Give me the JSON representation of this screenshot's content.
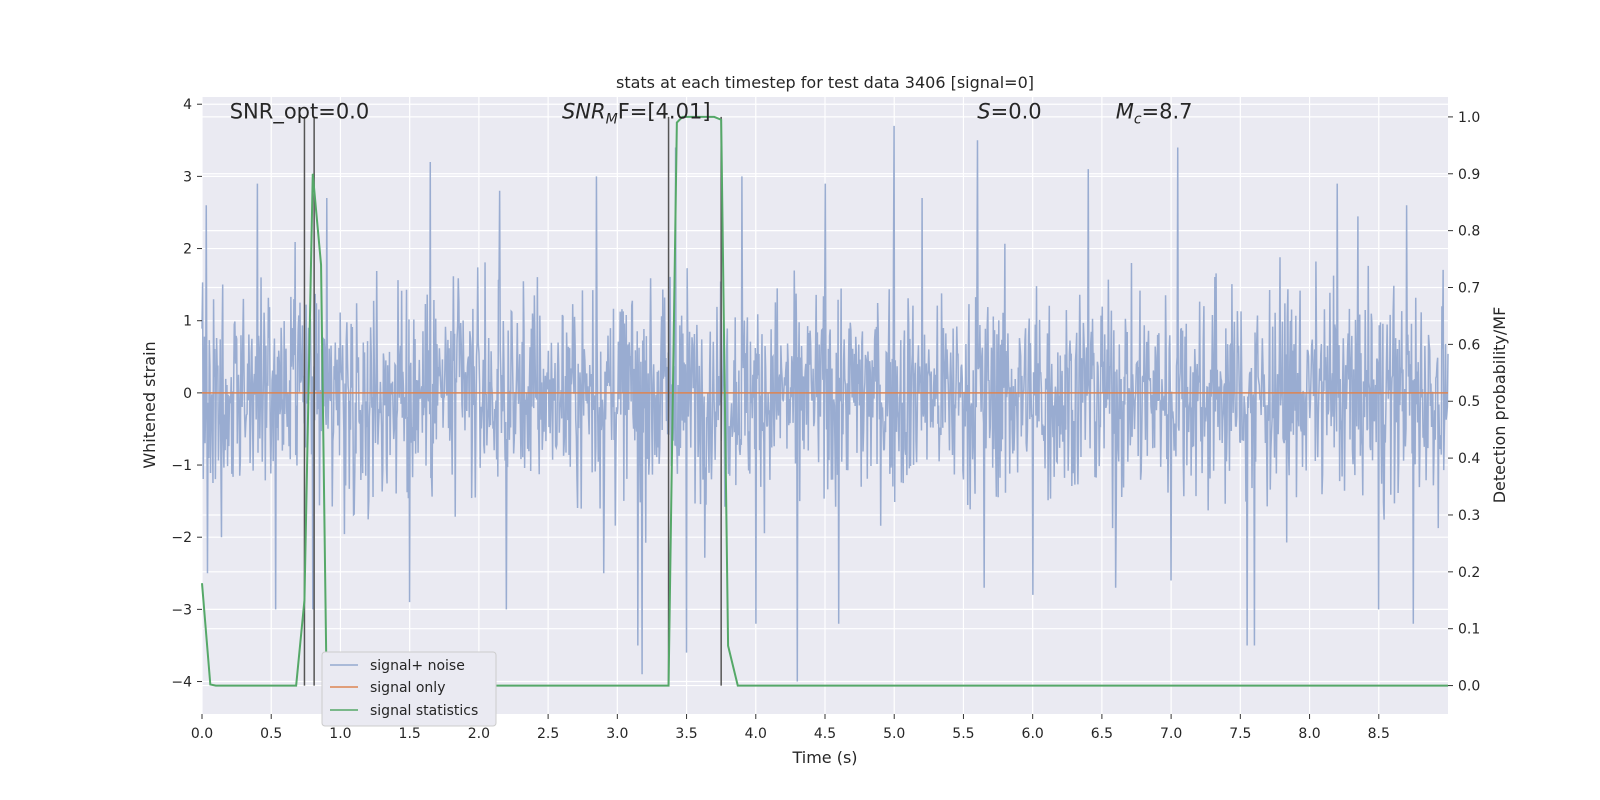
{
  "chart_data": {
    "type": "line",
    "title": "stats at each timestep for test data 3406 [signal=0]",
    "xlabel": "Time (s)",
    "ylabel": "Whitened strain",
    "ylabel_right": "Detection probability/MF",
    "xlim": [
      0,
      9.0
    ],
    "ylim": [
      -4.45,
      4.1
    ],
    "ylim_right": [
      -0.05,
      1.035
    ],
    "x_ticks": [
      0.0,
      0.5,
      1.0,
      1.5,
      2.0,
      2.5,
      3.0,
      3.5,
      4.0,
      4.5,
      5.0,
      5.5,
      6.0,
      6.5,
      7.0,
      7.5,
      8.0,
      8.5
    ],
    "x_tick_labels": [
      "0.0",
      "0.5",
      "1.0",
      "1.5",
      "2.0",
      "2.5",
      "3.0",
      "3.5",
      "4.0",
      "4.5",
      "5.0",
      "5.5",
      "6.0",
      "6.5",
      "7.0",
      "7.5",
      "8.0",
      "8.5"
    ],
    "y_ticks": [
      4,
      3,
      2,
      1,
      0,
      -1,
      -2,
      -3,
      -4
    ],
    "y_tick_labels": [
      "4",
      "3",
      "2",
      "1",
      "0",
      "−1",
      "−2",
      "−3",
      "−4"
    ],
    "y_ticks_right": [
      1.0,
      0.9,
      0.8,
      0.7,
      0.6,
      0.5,
      0.4,
      0.3,
      0.2,
      0.1,
      0.0
    ],
    "y_tick_labels_right": [
      "1.0",
      "0.9",
      "0.8",
      "0.7",
      "0.6",
      "0.5",
      "0.4",
      "0.3",
      "0.2",
      "0.1",
      "0.0"
    ],
    "grid": true,
    "legend_placement": "lower-left",
    "annotations": [
      {
        "x": 0.2,
        "y": 3.8,
        "text": "SNR_opt=0.0"
      },
      {
        "x": 2.6,
        "y": 3.8,
        "main": "SNR",
        "sub": "M",
        "tail": "F=[4.01]"
      },
      {
        "x": 5.6,
        "y": 3.8,
        "main": "S",
        "sub": "",
        "tail": "=0.0"
      },
      {
        "x": 6.6,
        "y": 3.8,
        "main": "M",
        "sub": "c",
        "tail": "=8.7"
      }
    ],
    "vertical_lines": [
      0.74,
      0.81,
      3.37,
      3.75
    ],
    "series": [
      {
        "name": "signal+ noise",
        "color": "#95a9cf",
        "amplitude": 1.3,
        "samples": 2048,
        "peaks": [
          {
            "x": 0.03,
            "y": 2.6
          },
          {
            "x": 0.04,
            "y": -2.5
          },
          {
            "x": 0.4,
            "y": 2.9
          },
          {
            "x": 0.53,
            "y": -3.0
          },
          {
            "x": 0.8,
            "y": -3.0
          },
          {
            "x": 0.9,
            "y": 2.7
          },
          {
            "x": 1.5,
            "y": -2.9
          },
          {
            "x": 1.65,
            "y": 3.2
          },
          {
            "x": 2.15,
            "y": 2.8
          },
          {
            "x": 2.2,
            "y": -3.0
          },
          {
            "x": 2.85,
            "y": 3.0
          },
          {
            "x": 2.9,
            "y": -2.5
          },
          {
            "x": 3.15,
            "y": -3.5
          },
          {
            "x": 3.18,
            "y": -3.9
          },
          {
            "x": 3.42,
            "y": 3.4
          },
          {
            "x": 3.5,
            "y": -3.6
          },
          {
            "x": 3.9,
            "y": 3.0
          },
          {
            "x": 4.0,
            "y": -3.2
          },
          {
            "x": 4.3,
            "y": -4.0
          },
          {
            "x": 4.5,
            "y": 2.9
          },
          {
            "x": 4.6,
            "y": -3.2
          },
          {
            "x": 5.0,
            "y": 3.7
          },
          {
            "x": 5.2,
            "y": 2.7
          },
          {
            "x": 5.6,
            "y": 3.5
          },
          {
            "x": 5.65,
            "y": -2.7
          },
          {
            "x": 6.0,
            "y": -2.8
          },
          {
            "x": 6.4,
            "y": 3.1
          },
          {
            "x": 6.6,
            "y": -2.7
          },
          {
            "x": 7.05,
            "y": 3.4
          },
          {
            "x": 7.0,
            "y": -2.6
          },
          {
            "x": 7.55,
            "y": -3.5
          },
          {
            "x": 7.6,
            "y": -3.5
          },
          {
            "x": 8.2,
            "y": 2.9
          },
          {
            "x": 8.5,
            "y": -3.0
          },
          {
            "x": 8.7,
            "y": 2.6
          },
          {
            "x": 8.75,
            "y": -3.2
          }
        ]
      },
      {
        "name": "signal only",
        "color": "#dd8452",
        "x": [
          0.0,
          9.0
        ],
        "y": [
          0.0,
          0.0
        ]
      },
      {
        "name": "signal statistics",
        "color": "#55a868",
        "axis": "right",
        "x": [
          0.0,
          0.06,
          0.1,
          0.68,
          0.74,
          0.8,
          0.86,
          0.9,
          0.93,
          3.37,
          3.43,
          3.47,
          3.5,
          3.7,
          3.75,
          3.8,
          3.87,
          9.0
        ],
        "y": [
          0.18,
          0.002,
          0.0,
          0.0,
          0.15,
          0.9,
          0.74,
          0.0,
          0.0,
          0.0,
          0.99,
          1.0,
          1.0,
          1.0,
          0.995,
          0.07,
          0.0,
          0.0
        ]
      }
    ]
  }
}
